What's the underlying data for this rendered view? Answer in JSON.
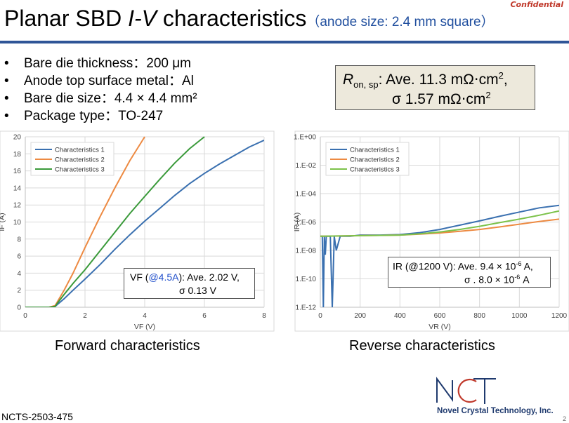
{
  "header": {
    "confidential": "Confidential",
    "title_part1": "Planar SBD ",
    "title_italic": "I-V",
    "title_part2": " characteristics",
    "title_sub": "（anode size: 2.4 mm square）"
  },
  "bullets": [
    "Bare die thickness：200 μm",
    "Anode top surface metal：Al",
    "Bare die size：4.4 × 4.4 mm²",
    "Package type：TO-247"
  ],
  "ron_box": {
    "symbol": "R",
    "subscript": "on, sp",
    "line1_rest": ": Ave. 11.3 mΩ⋅cm",
    "sup": "2",
    "line1_end": ",",
    "line2": "σ 1.57 mΩ⋅cm",
    "line2_sup": "2"
  },
  "forward_note": {
    "prefix": "VF (",
    "highlight": "@4.5A",
    "suffix": "): Ave. 2.02 V,",
    "line2": "σ 0.13 V",
    "highlight_color": "#1f4ecb"
  },
  "reverse_note": {
    "line1": "IR (@1200 V): Ave. 9.4 × 10",
    "line1_sup": "-6",
    "line1_end": " A,",
    "line2": "σ . 8.0 × 10",
    "line2_sup": "-6",
    "line2_end": " A"
  },
  "captions": {
    "forward": "Forward characteristics",
    "reverse": "Reverse characteristics"
  },
  "footer": {
    "doc_id": "NCTS-2503-475",
    "page": "2",
    "company": "Novel Crystal Technology, Inc.",
    "logo_text": "NCT"
  },
  "colors": {
    "series1": "#3a70b0",
    "series2": "#ed8a42",
    "series3": "#3a9a3a",
    "series3_reverse": "#7cc24a",
    "title_rule": "#2f5597"
  },
  "chart_data": [
    {
      "type": "line",
      "xlabel": "VF (V)",
      "ylabel": "IF (A)",
      "xlim": [
        0,
        8
      ],
      "ylim": [
        0,
        20
      ],
      "xticks": [
        "0",
        "2",
        "4",
        "6",
        "8"
      ],
      "yticks": [
        "0",
        "2",
        "4",
        "6",
        "8",
        "10",
        "12",
        "14",
        "16",
        "18",
        "20"
      ],
      "grid": true,
      "legend": "top-left",
      "series": [
        {
          "name": "Characteristics 1",
          "x": [
            0,
            0.8,
            1.0,
            1.1,
            1.3,
            1.6,
            2.0,
            2.5,
            3.0,
            3.5,
            4.0,
            4.5,
            5.0,
            5.5,
            6.0,
            6.5,
            7.0,
            7.5,
            8.0
          ],
          "y": [
            0,
            0,
            0.1,
            0.4,
            1.0,
            2.0,
            3.3,
            5.0,
            6.8,
            8.5,
            10.1,
            11.6,
            13.1,
            14.5,
            15.7,
            16.8,
            17.8,
            18.8,
            19.6
          ]
        },
        {
          "name": "Characteristics 2",
          "x": [
            0,
            0.8,
            1.0,
            1.1,
            1.3,
            1.6,
            2.0,
            2.5,
            3.0,
            3.5,
            4.0
          ],
          "y": [
            0,
            0,
            0.2,
            0.8,
            2.0,
            4.0,
            7.0,
            10.6,
            14.0,
            17.2,
            20.0
          ]
        },
        {
          "name": "Characteristics 3",
          "x": [
            0,
            0.8,
            1.0,
            1.1,
            1.3,
            1.6,
            2.0,
            2.5,
            3.0,
            3.5,
            4.0,
            4.5,
            5.0,
            5.5,
            6.0
          ],
          "y": [
            0,
            0,
            0.1,
            0.6,
            1.5,
            2.8,
            4.4,
            6.6,
            8.8,
            11.0,
            13.0,
            15.0,
            16.9,
            18.6,
            20.0
          ]
        }
      ]
    },
    {
      "type": "line",
      "xlabel": "VR (V)",
      "ylabel": "IR (A)",
      "xlim": [
        0,
        1200
      ],
      "ylim": [
        1e-12,
        1
      ],
      "yscale": "log",
      "xticks": [
        "0",
        "200",
        "400",
        "600",
        "800",
        "1000",
        "1200"
      ],
      "yticks": [
        "1.E-12",
        "1.E-10",
        "1.E-08",
        "1.E-06",
        "1.E-04",
        "1.E-02",
        "1.E+00"
      ],
      "grid": true,
      "legend": "top-left",
      "series": [
        {
          "name": "Characteristics 1",
          "x": [
            0,
            10,
            15,
            20,
            25,
            30,
            40,
            50,
            60,
            70,
            80,
            100,
            150,
            200,
            300,
            400,
            500,
            600,
            700,
            800,
            900,
            1000,
            1100,
            1200
          ],
          "y": [
            1e-07,
            1e-07,
            1e-12,
            1e-07,
            5e-09,
            1e-07,
            1e-07,
            1e-07,
            1e-12,
            1e-07,
            1e-08,
            1e-07,
            1e-07,
            1.2e-07,
            1.2e-07,
            1.3e-07,
            1.8e-07,
            3e-07,
            6e-07,
            1.2e-06,
            2.5e-06,
            5e-06,
            1e-05,
            1.5e-05
          ]
        },
        {
          "name": "Characteristics 2",
          "x": [
            0,
            200,
            400,
            500,
            600,
            700,
            800,
            900,
            1000,
            1100,
            1200
          ],
          "y": [
            1e-07,
            1.1e-07,
            1.2e-07,
            1.4e-07,
            1.7e-07,
            2.2e-07,
            3e-07,
            4.5e-07,
            7e-07,
            1.1e-06,
            1.6e-06
          ]
        },
        {
          "name": "Characteristics 3",
          "x": [
            0,
            200,
            400,
            500,
            600,
            700,
            800,
            900,
            1000,
            1100,
            1200
          ],
          "y": [
            1e-07,
            1.1e-07,
            1.2e-07,
            1.5e-07,
            2e-07,
            3e-07,
            5e-07,
            9e-07,
            1.6e-06,
            3e-06,
            6e-06
          ]
        }
      ]
    }
  ]
}
